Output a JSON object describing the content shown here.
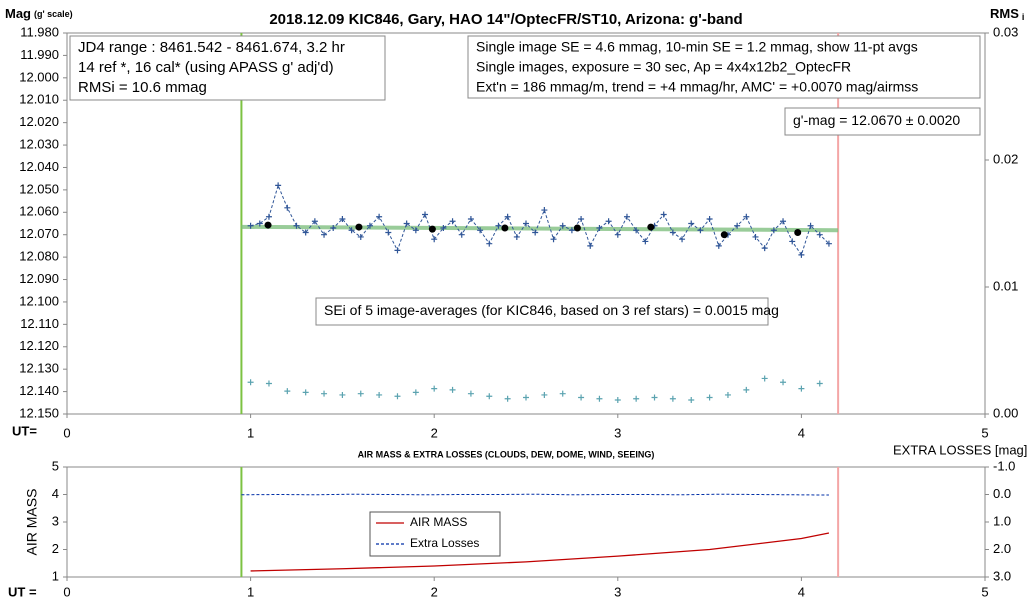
{
  "chart_data": [
    {
      "type": "line",
      "title": "2018.12.09 KIC846, Gary, HAO 14\"/OptecFR/ST10, Arizona: g'-band",
      "ylabel": "Mag",
      "ylabel_sub": "(g' scale)",
      "y2label": "RMS",
      "y2label_sub": "i",
      "xlabel": "UT=",
      "xlim": [
        0,
        5
      ],
      "xticks": [
        0,
        1,
        2,
        3,
        4,
        5
      ],
      "ylim": [
        12.15,
        11.98
      ],
      "yticks": [
        {
          "value": 11.98,
          "label": "11.980"
        },
        {
          "value": 11.99,
          "label": "11.990"
        },
        {
          "value": 12.0,
          "label": "12.000"
        },
        {
          "value": 12.01,
          "label": "12.010"
        },
        {
          "value": 12.02,
          "label": "12.020"
        },
        {
          "value": 12.03,
          "label": "12.030"
        },
        {
          "value": 12.04,
          "label": "12.040"
        },
        {
          "value": 12.05,
          "label": "12.050"
        },
        {
          "value": 12.06,
          "label": "12.060"
        },
        {
          "value": 12.07,
          "label": "12.070"
        },
        {
          "value": 12.08,
          "label": "12.080"
        },
        {
          "value": 12.09,
          "label": "12.090"
        },
        {
          "value": 12.1,
          "label": "12.100"
        },
        {
          "value": 12.11,
          "label": "12.110"
        },
        {
          "value": 12.12,
          "label": "12.120"
        },
        {
          "value": 12.13,
          "label": "12.130"
        },
        {
          "value": 12.14,
          "label": "12.140"
        },
        {
          "value": 12.15,
          "label": "12.150"
        }
      ],
      "y2lim": [
        0,
        0.03
      ],
      "y2ticks": [
        0.03,
        0.02,
        0.01,
        {
          "value": 0,
          "label": "0.00"
        }
      ],
      "vlines": [
        {
          "x": 0.95,
          "color": "#7cc242"
        },
        {
          "x": 4.2,
          "color": "#f4a6a6"
        }
      ],
      "annotations": [
        {
          "lines": [
            "JD4 range : 8461.542 - 8461.674,  3.2  hr",
            "14 ref *, 16 cal* (using APASS g' adj'd)",
            "RMSi = 10.6 mmag"
          ]
        },
        {
          "lines": [
            "Single image SE = 4.6 mmag, 10-min SE = 1.2 mmag, show  11-pt avgs",
            "Single images, exposure = 30 sec, Ap = 4x4x12b2_OptecFR",
            "Ext'n = 186 mmag/m, trend =  +4 mmag/hr, AMC' = +0.0070 mag/airmss"
          ]
        },
        {
          "lines": [
            "g'-mag = 12.0670 ± 0.0020"
          ]
        },
        {
          "lines": [
            "SEi of 5 image-averages (for KIC846, based on 3 ref stars) = 0.0015 mag"
          ]
        }
      ],
      "series": [
        {
          "color": "#7fbf7f",
          "line": "solid",
          "marker": "none",
          "axis": "y",
          "x": [
            0.95,
            4.2
          ],
          "values": [
            12.0665,
            12.068
          ]
        },
        {
          "color": "#2f5597",
          "line": "dashed",
          "marker": "plus",
          "axis": "y",
          "x": [
            1,
            1.05,
            1.1,
            1.15,
            1.2,
            1.25,
            1.3,
            1.35,
            1.4,
            1.45,
            1.5,
            1.55,
            1.6,
            1.65,
            1.7,
            1.75,
            1.8,
            1.85,
            1.9,
            1.95,
            2,
            2.05,
            2.1,
            2.15,
            2.2,
            2.25,
            2.3,
            2.35,
            2.4,
            2.45,
            2.5,
            2.55,
            2.6,
            2.65,
            2.7,
            2.75,
            2.8,
            2.85,
            2.9,
            2.95,
            3,
            3.05,
            3.1,
            3.15,
            3.2,
            3.25,
            3.3,
            3.35,
            3.4,
            3.45,
            3.5,
            3.55,
            3.6,
            3.65,
            3.7,
            3.75,
            3.8,
            3.85,
            3.9,
            3.95,
            4,
            4.05,
            4.1,
            4.15
          ],
          "values": [
            12.066,
            12.065,
            12.062,
            12.048,
            12.058,
            12.066,
            12.069,
            12.064,
            12.07,
            12.067,
            12.063,
            12.068,
            12.071,
            12.066,
            12.062,
            12.069,
            12.077,
            12.065,
            12.068,
            12.061,
            12.072,
            12.067,
            12.064,
            12.07,
            12.063,
            12.068,
            12.074,
            12.066,
            12.062,
            12.071,
            12.065,
            12.069,
            12.059,
            12.072,
            12.066,
            12.068,
            12.063,
            12.075,
            12.067,
            12.064,
            12.07,
            12.062,
            12.068,
            12.073,
            12.066,
            12.061,
            12.069,
            12.072,
            12.065,
            12.068,
            12.063,
            12.075,
            12.07,
            12.066,
            12.062,
            12.071,
            12.076,
            12.068,
            12.064,
            12.073,
            12.079,
            12.066,
            12.07,
            12.074
          ]
        },
        {
          "color": "#000000",
          "line": "none",
          "marker": "dot",
          "axis": "y",
          "x": [
            1.095,
            1.59,
            1.99,
            2.385,
            2.78,
            3.18,
            3.58,
            3.98
          ],
          "values": [
            12.0657,
            12.0666,
            12.0675,
            12.067,
            12.067,
            12.0666,
            12.07,
            12.069
          ]
        },
        {
          "color": "#5ba3b0",
          "line": "none",
          "marker": "plus",
          "axis": "y2",
          "x": [
            1,
            1.1,
            1.2,
            1.3,
            1.4,
            1.5,
            1.6,
            1.7,
            1.8,
            1.9,
            2,
            2.1,
            2.2,
            2.3,
            2.4,
            2.5,
            2.6,
            2.7,
            2.8,
            2.9,
            3,
            3.1,
            3.2,
            3.3,
            3.4,
            3.5,
            3.6,
            3.7,
            3.8,
            3.9,
            4,
            4.1
          ],
          "values": [
            0.0025,
            0.0024,
            0.0018,
            0.0017,
            0.0016,
            0.0015,
            0.0016,
            0.0015,
            0.0014,
            0.0017,
            0.002,
            0.0019,
            0.0016,
            0.0014,
            0.0012,
            0.0013,
            0.0015,
            0.0016,
            0.0013,
            0.0012,
            0.0011,
            0.0012,
            0.0013,
            0.0012,
            0.0011,
            0.0013,
            0.0015,
            0.0019,
            0.0028,
            0.0025,
            0.002,
            0.0024
          ]
        }
      ]
    },
    {
      "type": "line",
      "title": "AIR MASS & EXTRA LOSSES (CLOUDS, DEW, DOME, WIND, SEEING)",
      "ylabel": "AIR MASS",
      "y2label": "EXTRA LOSSES [mag]",
      "xlabel": "UT =",
      "xlim": [
        0,
        5
      ],
      "xticks": [
        0,
        1,
        2,
        3,
        4,
        5
      ],
      "ylim": [
        1,
        5
      ],
      "yticks": [
        1,
        2,
        3,
        4,
        5
      ],
      "y2lim": [
        3,
        -1
      ],
      "y2ticks": [
        {
          "value": -1,
          "label": "-1.0"
        },
        {
          "value": 0,
          "label": "0.0"
        },
        {
          "value": 1,
          "label": "1.0"
        },
        {
          "value": 2,
          "label": "2.0"
        },
        {
          "value": 3,
          "label": "3.0"
        }
      ],
      "vlines": [
        {
          "x": 0.95,
          "color": "#7cc242"
        },
        {
          "x": 4.2,
          "color": "#f4a6a6"
        }
      ],
      "legend": true,
      "series": [
        {
          "name": "AIR MASS",
          "color": "#c00000",
          "line": "solid",
          "marker": "none",
          "axis": "y",
          "x": [
            1,
            1.5,
            2,
            2.5,
            3,
            3.5,
            4,
            4.15
          ],
          "values": [
            1.22,
            1.3,
            1.4,
            1.55,
            1.76,
            2,
            2.4,
            2.6
          ]
        },
        {
          "name": "Extra Losses",
          "color": "#002fa7",
          "line": "dashed",
          "marker": "none",
          "axis": "y2",
          "x": [
            0.95,
            1.15,
            1.35,
            1.55,
            1.75,
            1.95,
            2.15,
            2.35,
            2.55,
            2.75,
            2.95,
            3.15,
            3.35,
            3.55,
            3.75,
            3.95,
            4.15
          ],
          "values": [
            0.01,
            0,
            0.01,
            -0.01,
            0,
            0.01,
            0,
            0,
            -0.01,
            0.01,
            0,
            0,
            0.01,
            -0.01,
            0,
            0.01,
            0.02
          ]
        }
      ]
    }
  ]
}
